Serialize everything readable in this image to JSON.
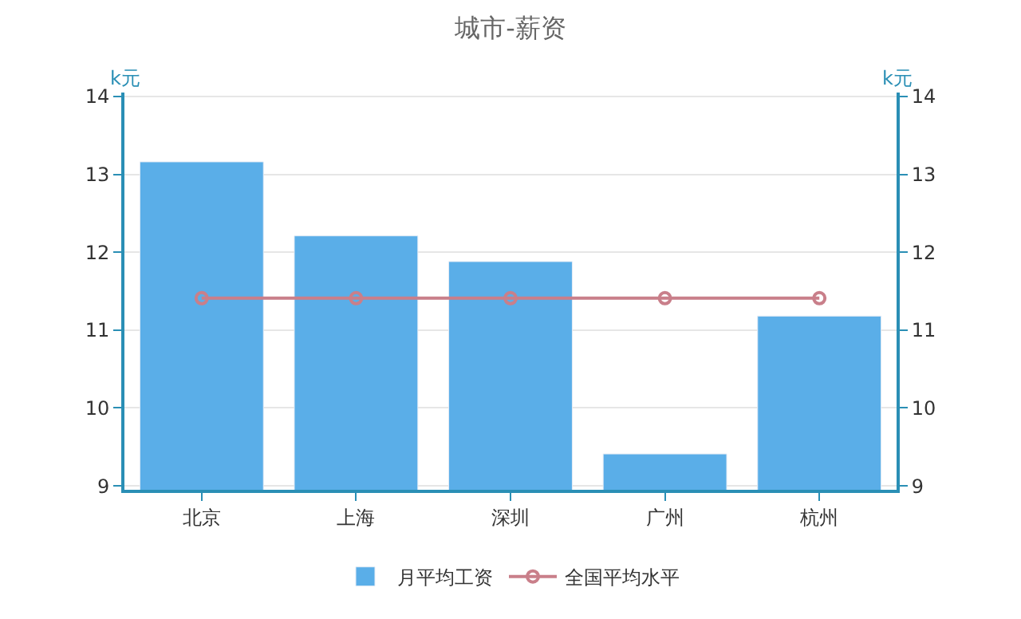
{
  "chart_data": {
    "type": "bar",
    "title": "城市-薪资",
    "ylabel": "k元",
    "y2label": "k元",
    "categories": [
      "北京",
      "上海",
      "深圳",
      "广州",
      "杭州"
    ],
    "series": [
      {
        "name": "月平均工资",
        "color": "#5aaee8",
        "values": [
          13.16,
          12.21,
          11.88,
          9.41,
          11.18
        ]
      },
      {
        "name": "全国平均水平",
        "type": "line",
        "color": "#c97f8a",
        "axis": "y2",
        "marker": "circle",
        "values": [
          11.41,
          11.41,
          11.41,
          11.41,
          11.41
        ]
      }
    ],
    "ylim": [
      8.95,
      14.05
    ],
    "yticks": [
      9,
      10,
      11,
      12,
      13,
      14
    ],
    "y2lim": [
      8.95,
      14.05
    ],
    "y2ticks": [
      9,
      10,
      11,
      12,
      13,
      14
    ],
    "grid": "y",
    "legend": "bottom"
  }
}
